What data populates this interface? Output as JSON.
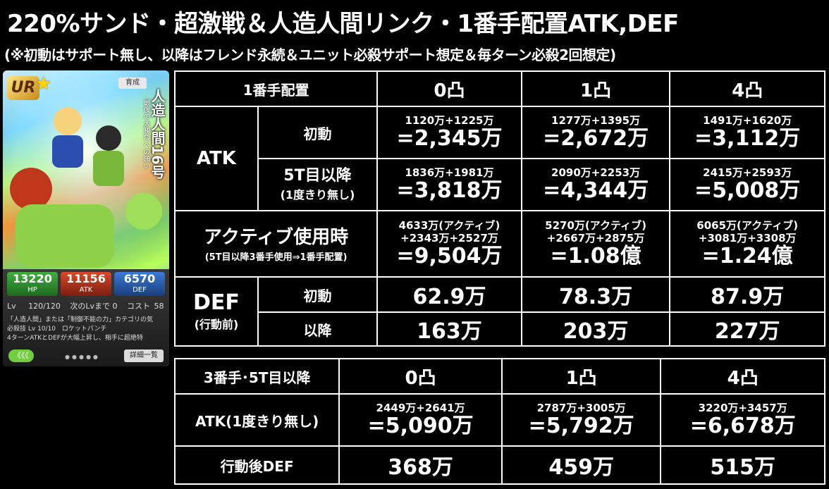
{
  "title": "220%サンド・超激戦＆人造人間リンク・1番手配置ATK,DEF",
  "subtitle": "(※初動はサポート無し、以降はフレンド永続＆ユニット必殺サポート想定＆毎ターン必殺2回想定)",
  "card": {
    "rarity": "UR",
    "type_label": "育成",
    "name_vertical": "人造人間16号",
    "name_sub": "最後の大勝負への願い",
    "hp_label": "HP",
    "hp": "13220",
    "atk_label": "ATK",
    "atk": "11156",
    "def_label": "DEF",
    "def": "6570",
    "lv_label": "Lv",
    "lv": "120/120",
    "next_lv": "次のLvまで 0",
    "cost_label": "コスト",
    "cost": "58",
    "skill_text": "「人造人間」または「制御不能の力」カテゴリの気",
    "super_label": "必殺技 Lv",
    "super_lv": "10/10",
    "super_name": "ロケットパンチ",
    "super_desc": "4ターンATKとDEFが大幅上昇し、相手に超絶特",
    "back_btn": "《《《",
    "detail_btn": "詳細一覧"
  },
  "table1": {
    "corner": "1番手配置",
    "cols": [
      "0凸",
      "1凸",
      "4凸"
    ],
    "atk_label": "ATK",
    "rows": {
      "initial": {
        "label": "初動",
        "cells": [
          {
            "top": "1120万+1225万",
            "main": "=2,345万"
          },
          {
            "top": "1277万+1395万",
            "main": "=2,672万"
          },
          {
            "top": "1491万+1620万",
            "main": "=3,112万"
          }
        ]
      },
      "later": {
        "label": "5T目以降",
        "label_sub": "(1度きり無し)",
        "cells": [
          {
            "top": "1836万+1981万",
            "main": "=3,818万"
          },
          {
            "top": "2090万+2253万",
            "main": "=4,344万"
          },
          {
            "top": "2415万+2593万",
            "main": "=5,008万"
          }
        ]
      },
      "active": {
        "label": "アクティブ使用時",
        "label_sub": "(5T目以降3番手使用⇒1番手配置)",
        "cells": [
          {
            "line1": "4633万(アクティブ)",
            "line2": "+2343万+2527万",
            "main": "=9,504万"
          },
          {
            "line1": "5270万(アクティブ)",
            "line2": "+2667万+2875万",
            "main": "=1.08億"
          },
          {
            "line1": "6065万(アクティブ)",
            "line2": "+3081万+3308万",
            "main": "=1.24億"
          }
        ]
      }
    },
    "def_label": "DEF",
    "def_sub": "(行動前)",
    "def_rows": {
      "initial": {
        "label": "初動",
        "values": [
          "62.9万",
          "78.3万",
          "87.9万"
        ]
      },
      "later": {
        "label": "以降",
        "values": [
          "163万",
          "203万",
          "227万"
        ]
      }
    }
  },
  "table2": {
    "corner": "3番手･5T目以降",
    "cols": [
      "0凸",
      "1凸",
      "4凸"
    ],
    "atk_label": "ATK(1度きり無し)",
    "atk_cells": [
      {
        "top": "2449万+2641万",
        "main": "=5,090万"
      },
      {
        "top": "2787万+3005万",
        "main": "=5,792万"
      },
      {
        "top": "3220万+3457万",
        "main": "=6,678万"
      }
    ],
    "def_label": "行動後DEF",
    "def_values": [
      "368万",
      "459万",
      "515万"
    ]
  }
}
